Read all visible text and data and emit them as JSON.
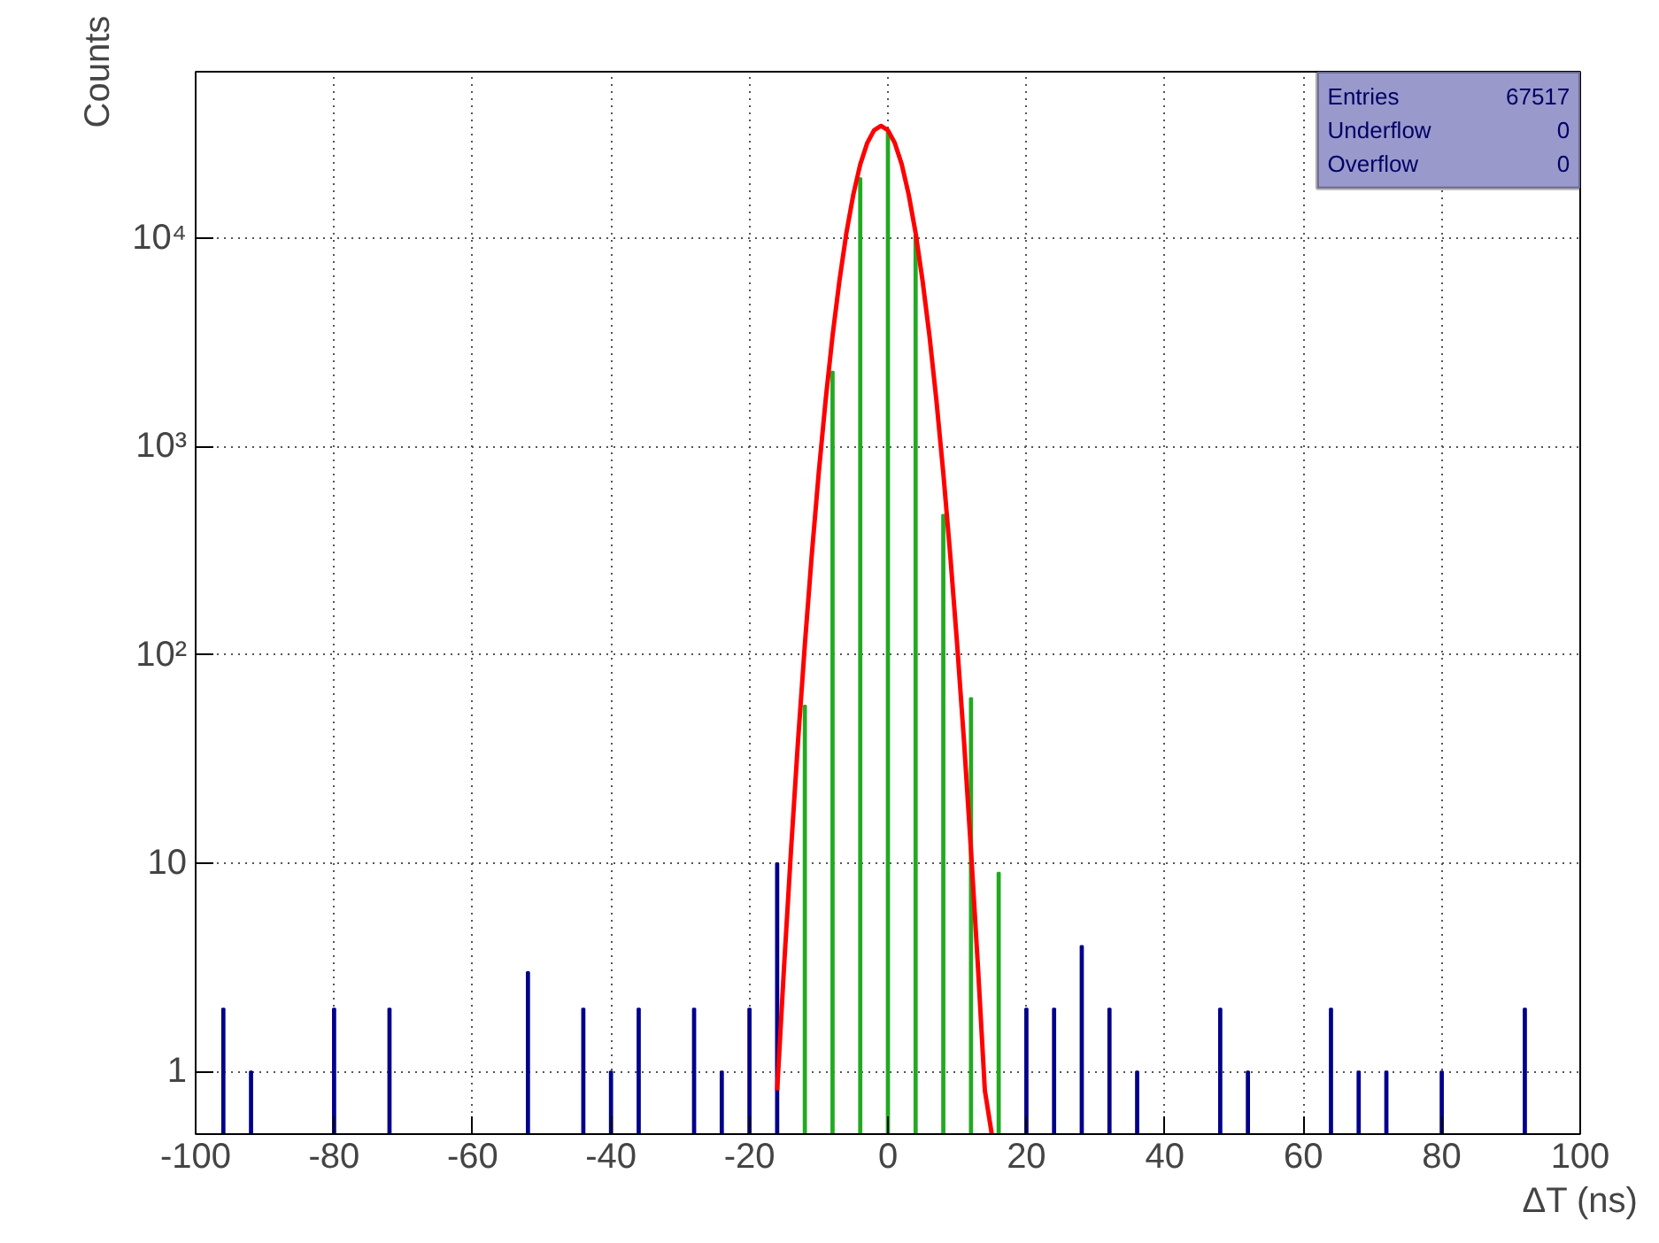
{
  "chart_data": {
    "type": "bar",
    "xlabel": "ΔT (ns)",
    "ylabel": "Counts",
    "log": "y",
    "grid": true,
    "xlim": [
      -100,
      100
    ],
    "xticks": [
      -100,
      -80,
      -60,
      -40,
      -20,
      0,
      20,
      40,
      60,
      80,
      100
    ],
    "ylim": [
      0.5,
      63000
    ],
    "yticks": [
      1,
      10,
      {
        "value": 100,
        "label": "10²"
      },
      {
        "value": 1000,
        "label": "10³"
      },
      {
        "value": 10000,
        "label": "10⁴"
      }
    ],
    "series": [
      {
        "color": "#00008b",
        "x": [
          -96,
          -92,
          -80,
          -72,
          -52,
          -44,
          -40,
          -36,
          -28,
          -24,
          -20,
          -16,
          20,
          24,
          28,
          32,
          36,
          48,
          52,
          64,
          68,
          72,
          80,
          92
        ],
        "values": [
          2,
          1,
          2,
          2,
          3,
          2,
          1,
          2,
          2,
          1,
          2,
          10,
          2,
          2,
          4,
          2,
          1,
          2,
          1,
          2,
          1,
          1,
          1,
          2
        ]
      },
      {
        "color": "#22aa22",
        "x": [
          -12,
          -8,
          -4,
          0,
          4,
          8,
          12,
          16
        ],
        "values": [
          57,
          2290,
          19400,
          32500,
          10400,
          470,
          62,
          9
        ]
      },
      {
        "type": "line",
        "color": "#ff0000",
        "x": [
          -16,
          -15,
          -14,
          -13,
          -12,
          -11,
          -10,
          -9,
          -8,
          -7,
          -6,
          -5,
          -4,
          -3,
          -2,
          -1,
          0,
          1,
          2,
          3,
          4,
          5,
          6,
          7,
          8,
          9,
          10,
          11,
          12,
          13,
          14,
          15
        ],
        "values": [
          0.81,
          3.2,
          11.5,
          38,
          112,
          302,
          744,
          1670,
          3400,
          6260,
          10600,
          16200,
          22600,
          28600,
          33000,
          34600,
          33000,
          28600,
          22600,
          16200,
          10600,
          6260,
          3400,
          1670,
          744,
          302,
          112,
          38,
          11.5,
          3.2,
          0.81,
          0.5
        ]
      }
    ],
    "annotations": [
      "Entries 67517",
      "Underflow 0",
      "Overflow 0"
    ]
  }
}
